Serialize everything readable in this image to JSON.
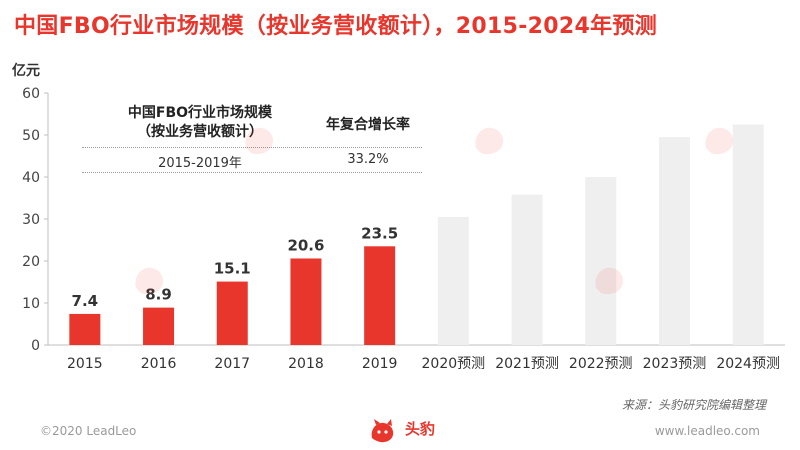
{
  "header": {
    "title": "中国FBO行业市场规模（按业务营收额计），2015-2024年预测"
  },
  "chart_data": {
    "type": "bar",
    "title": "中国FBO行业市场规模（按业务营收额计），2015-2024年预测",
    "ylabel": "亿元",
    "ylim": [
      0,
      60
    ],
    "yticks": [
      0,
      10,
      20,
      30,
      40,
      50,
      60
    ],
    "grid": false,
    "categories": [
      "2015",
      "2016",
      "2017",
      "2018",
      "2019",
      "2020预测",
      "2021预测",
      "2022预测",
      "2023预测",
      "2024预测"
    ],
    "values": [
      7.4,
      8.9,
      15.1,
      20.6,
      23.5,
      30.5,
      35.8,
      40.0,
      49.5,
      52.5
    ],
    "data_labels": [
      "7.4",
      "8.9",
      "15.1",
      "20.6",
      "23.5",
      "",
      "",
      "",
      "",
      ""
    ],
    "colors": {
      "actual": "#e8362c",
      "forecast": "#efefef"
    }
  },
  "inset_table": {
    "title_line1": "中国FBO行业市场规模",
    "title_line2": "（按业务营收额计）",
    "cagr_header": "年复合增长率",
    "period": "2015-2019年",
    "cagr_value": "33.2%"
  },
  "source": "来源：头豹研究院编辑整理",
  "footer": {
    "copyright": "©2020 LeadLeo",
    "website": "www.leadleo.com",
    "logo_text": "头豹"
  }
}
